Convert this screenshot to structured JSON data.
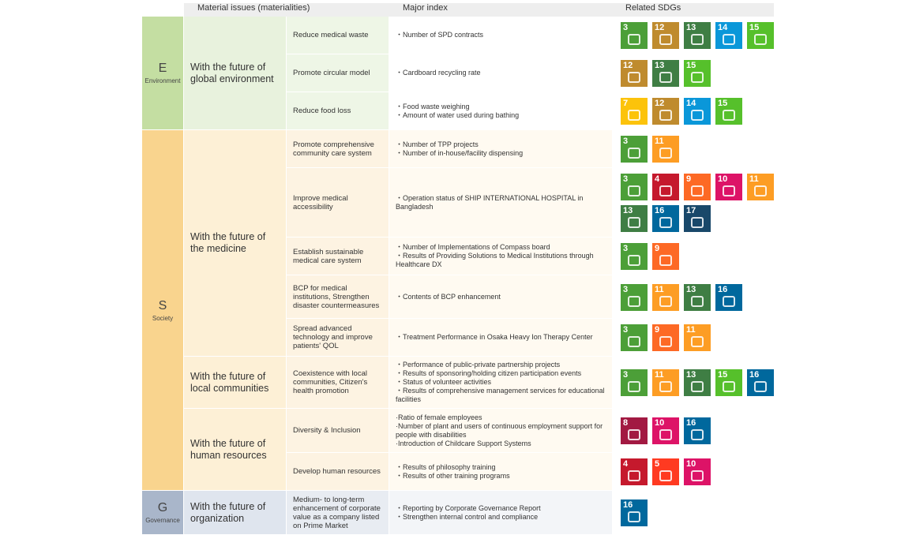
{
  "header": [
    "Material issues (materialities)",
    "Major index",
    "Related SDGs"
  ],
  "pillars": [
    {
      "letter": "E",
      "name": "Environment",
      "groups": [
        {
          "title": "With the future of global environment",
          "rows": [
            {
              "issue": "Reduce medical waste",
              "index": [
                "・Number of SPD contracts"
              ],
              "sdgs": [
                3,
                12,
                13,
                14,
                15
              ]
            },
            {
              "issue": "Promote circular model",
              "index": [
                "・Cardboard recycling rate"
              ],
              "sdgs": [
                12,
                13,
                15
              ]
            },
            {
              "issue": "Reduce food loss",
              "index": [
                "・Food waste weighing",
                "・Amount of water used during bathing"
              ],
              "sdgs": [
                7,
                12,
                14,
                15
              ]
            }
          ]
        }
      ]
    },
    {
      "letter": "S",
      "name": "Society",
      "groups": [
        {
          "title": "With the future of the medicine",
          "rows": [
            {
              "issue": "Promote comprehensive community care system",
              "index": [
                "・Number of TPP projects",
                "・Number of in-house/facility dispensing"
              ],
              "sdgs": [
                3,
                11
              ]
            },
            {
              "issue": "Improve medical accessibility",
              "index": [
                "・Operation status of SHIP INTERNATIONAL HOSPITAL in Bangladesh"
              ],
              "sdgs": [
                3,
                4,
                9,
                10,
                11,
                13,
                16,
                17
              ]
            },
            {
              "issue": "Establish sustainable medical care system",
              "index": [
                "・Number of Implementations of Compass board",
                "・Results of Providing Solutions to Medical Institutions through Healthcare DX"
              ],
              "sdgs": [
                3,
                9
              ]
            },
            {
              "issue": "BCP for medical institutions, Strengthen disaster countermeasures",
              "index": [
                "・Contents of BCP enhancement"
              ],
              "sdgs": [
                3,
                11,
                13,
                16
              ]
            },
            {
              "issue": "Spread advanced technology and improve patients' QOL",
              "index": [
                "・Treatment Performance in Osaka Heavy Ion Therapy Center"
              ],
              "sdgs": [
                3,
                9,
                11
              ]
            }
          ]
        },
        {
          "title": "With the future of local communities",
          "rows": [
            {
              "issue": "Coexistence with local communities, Citizen's health promotion",
              "index": [
                "・Performance of public-private partnership projects",
                "・Results of sponsoring/holding citizen participation events",
                "・Status of volunteer activities",
                "・Results of comprehensive management services for educational facilities"
              ],
              "sdgs": [
                3,
                11,
                13,
                15,
                16
              ]
            }
          ]
        },
        {
          "title": "With the future of human resources",
          "rows": [
            {
              "issue": "Diversity & Inclusion",
              "index": [
                "·Ratio of female employees",
                "·Number of plant and users of continuous employment support for people with disabilities",
                "·Introduction of Childcare Support Systems"
              ],
              "sdgs": [
                8,
                10,
                16
              ]
            },
            {
              "issue": "Develop human resources",
              "index": [
                "・Results of philosophy training",
                "・Results of other training programs"
              ],
              "sdgs": [
                4,
                5,
                10
              ]
            }
          ]
        }
      ]
    },
    {
      "letter": "G",
      "name": "Governance",
      "groups": [
        {
          "title": "With the future of organization",
          "rows": [
            {
              "issue": "Medium- to long-term enhancement of corporate value as a company listed on Prime Market",
              "index": [
                "・Reporting by Corporate Governance Report",
                "・Strengthen internal control and compliance"
              ],
              "sdgs": [
                16
              ]
            }
          ]
        }
      ]
    }
  ]
}
